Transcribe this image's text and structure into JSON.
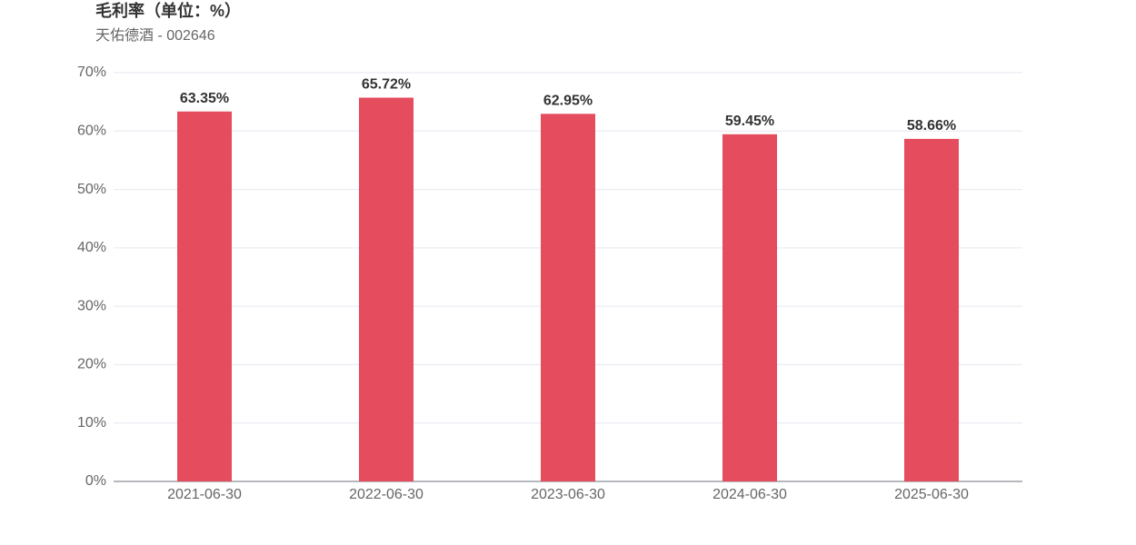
{
  "chart_data": {
    "type": "bar",
    "title": "毛利率（单位：%）",
    "subtitle": "天佑德酒 - 002646",
    "categories": [
      "2021-06-30",
      "2022-06-30",
      "2023-06-30",
      "2024-06-30",
      "2025-06-30"
    ],
    "values": [
      63.35,
      65.72,
      62.95,
      59.45,
      58.66
    ],
    "value_labels": [
      "63.35%",
      "65.72%",
      "62.95%",
      "59.45%",
      "58.66%"
    ],
    "color": "#e54c5e",
    "ylim": [
      0,
      70
    ],
    "yticks": [
      {
        "value": 0,
        "label": "0%"
      },
      {
        "value": 10,
        "label": "10%"
      },
      {
        "value": 20,
        "label": "20%"
      },
      {
        "value": 30,
        "label": "30%"
      },
      {
        "value": 40,
        "label": "40%"
      },
      {
        "value": 50,
        "label": "50%"
      },
      {
        "value": 60,
        "label": "60%"
      },
      {
        "value": 70,
        "label": "70%"
      }
    ],
    "grid": true
  }
}
